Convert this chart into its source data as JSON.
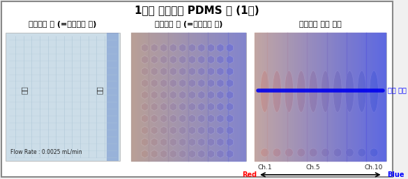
{
  "title": "1차원 농도구배 PDMS 칩 (1차)",
  "title_fontsize": 11,
  "bg_color": "#f0f0f0",
  "border_color": "#888888",
  "panel1_label": "시료주입 전 (=농도구배 전)",
  "panel2_label": "시료주입 후 (=농도구배 후)",
  "panel3_label": "농도구배 결과 사진",
  "panel_label_fontsize": 8,
  "flow_rate_text": "Flow Rate : 0.0025 mL/min",
  "input_label": "입구",
  "chamber_label": "챔버",
  "analysis_label": "분석 영역",
  "ch1_label": "Ch.1",
  "ch5_label": "Ch.5",
  "ch10_label": "Ch.10",
  "red_label": "Red",
  "blue_label": "Blue",
  "arrow_color": "#000000",
  "blue_line_color": "#0000ee",
  "panel1_bg": "#d8e8f0",
  "panel2_bg": "#d0c0b8",
  "panel3_bg": "#b8c8d8"
}
